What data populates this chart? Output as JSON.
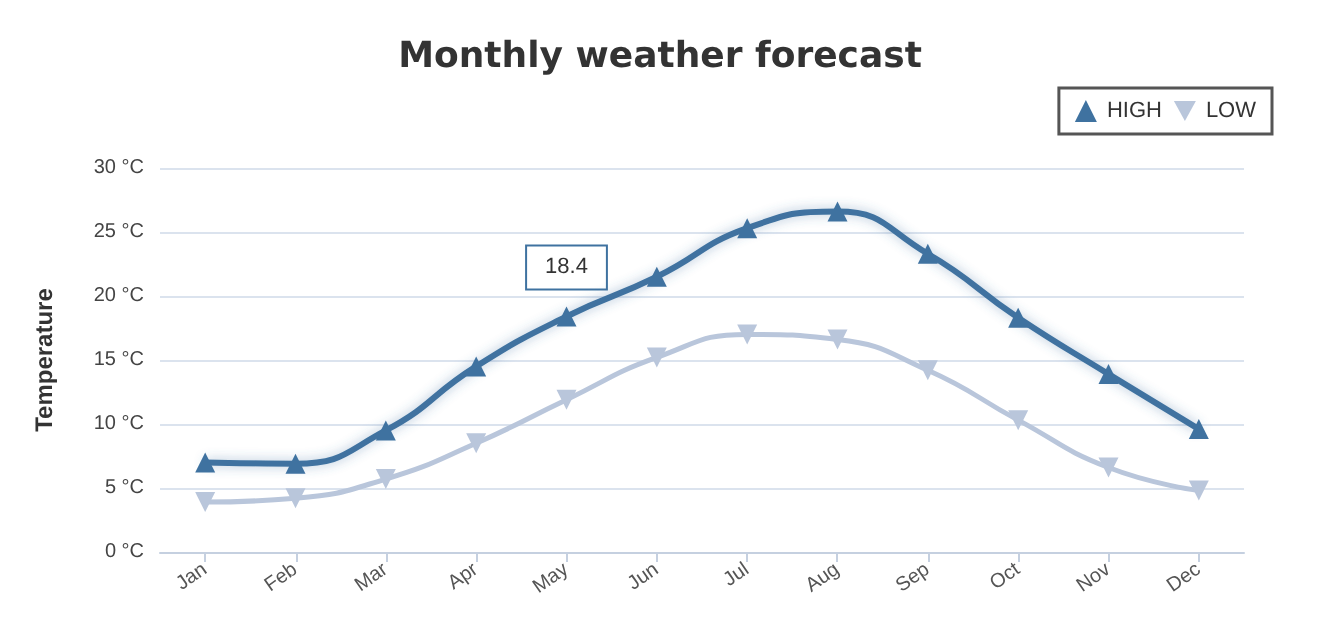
{
  "chart_data": {
    "type": "line",
    "title": "Monthly weather forecast",
    "ylabel": "Temperature",
    "categories": [
      "Jan",
      "Feb",
      "Mar",
      "Apr",
      "May",
      "Jun",
      "Jul",
      "Aug",
      "Sep",
      "Oct",
      "Nov",
      "Dec"
    ],
    "series": [
      {
        "name": "HIGH",
        "color": "#3f72a0",
        "marker": "triangle",
        "values": [
          7.0,
          6.9,
          9.5,
          14.5,
          18.4,
          21.5,
          25.3,
          26.6,
          23.3,
          18.3,
          13.9,
          9.6
        ]
      },
      {
        "name": "LOW",
        "color": "#b9c6db",
        "marker": "triangle-down",
        "values": [
          3.9,
          4.2,
          5.7,
          8.5,
          11.9,
          15.2,
          17.0,
          16.6,
          14.2,
          10.3,
          6.6,
          4.8
        ]
      }
    ],
    "ylim": [
      0,
      30
    ],
    "yticks": [
      {
        "value": 0,
        "label": "0 °C"
      },
      {
        "value": 5,
        "label": "5 °C"
      },
      {
        "value": 10,
        "label": "10 °C"
      },
      {
        "value": 15,
        "label": "15 °C"
      },
      {
        "value": 20,
        "label": "20 °C"
      },
      {
        "value": 25,
        "label": "25 °C"
      },
      {
        "value": 30,
        "label": "30 °C"
      }
    ],
    "annotations": [
      {
        "text": "18.4",
        "x": "May",
        "y": 18.4
      }
    ],
    "grid": "y",
    "legend": "top right"
  }
}
